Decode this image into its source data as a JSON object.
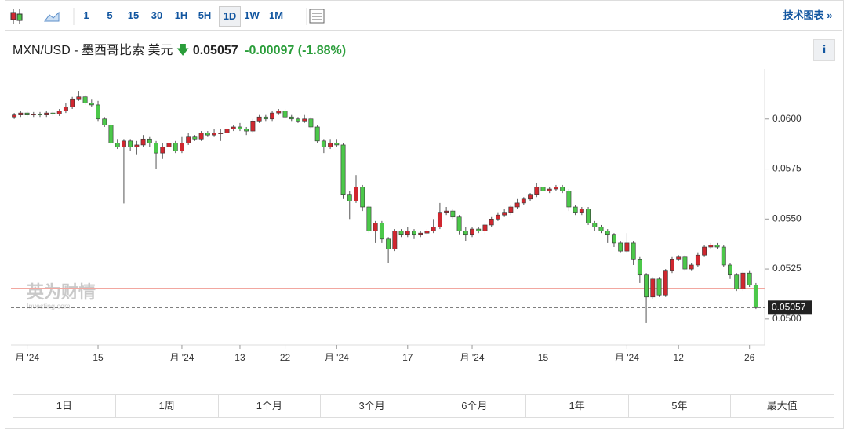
{
  "toolbar": {
    "intervals": [
      "1",
      "5",
      "15",
      "30",
      "1H",
      "5H",
      "1D",
      "1W",
      "1M"
    ],
    "tech_chart": "技术图表 »"
  },
  "header": {
    "symbol": "MXN/USD - 墨西哥比索 美元",
    "price": "0.05057",
    "change": "-0.00097",
    "change_pct": "(-1.88%)",
    "info": "i"
  },
  "watermark": {
    "brand": "英为财情",
    "site": "Investing.com"
  },
  "ranges": [
    "1日",
    "1周",
    "1个月",
    "3个月",
    "6个月",
    "1年",
    "5年",
    "最大值"
  ],
  "chart_data": {
    "type": "candlestick",
    "up_color": "#d0272f",
    "down_color": "#4cc84a",
    "categories": [
      null,
      null,
      "月 '24",
      null,
      null,
      null,
      null,
      null,
      null,
      null,
      null,
      null,
      null,
      "15",
      null,
      null,
      null,
      null,
      null,
      null,
      null,
      null,
      null,
      null,
      null,
      null,
      "月 '24",
      null,
      null,
      null,
      null,
      null,
      null,
      null,
      null,
      "13",
      null,
      null,
      null,
      null,
      null,
      null,
      "22",
      null,
      null,
      null,
      null,
      null,
      null,
      null,
      "月 '24",
      null,
      null,
      null,
      null,
      null,
      null,
      null,
      null,
      null,
      null,
      "17",
      null,
      null,
      null,
      null,
      null,
      null,
      null,
      null,
      null,
      "月 '24",
      null,
      null,
      null,
      null,
      null,
      null,
      null,
      null,
      null,
      null,
      "15",
      null,
      null,
      null,
      null,
      null,
      null,
      null,
      null,
      null,
      null,
      null,
      null,
      "月 '24",
      null,
      null,
      null,
      null,
      null,
      null,
      null,
      "12",
      null,
      null,
      null,
      null,
      null,
      null,
      null,
      null,
      null,
      null,
      "26",
      null
    ],
    "open": [
      0.0601,
      0.0602,
      0.0603,
      0.0602,
      0.06025,
      0.0602,
      0.0603,
      0.06025,
      0.0604,
      0.0606,
      0.061,
      0.0611,
      0.0608,
      0.0607,
      0.06,
      0.0597,
      0.0588,
      0.0586,
      0.0589,
      0.0586,
      0.0587,
      0.059,
      0.0588,
      0.0583,
      0.0586,
      0.0588,
      0.0584,
      0.0588,
      0.0591,
      0.059,
      0.0593,
      0.0592,
      0.0593,
      0.0593,
      0.0595,
      0.0596,
      0.0595,
      0.0594,
      0.0599,
      0.0601,
      0.06,
      0.0603,
      0.0604,
      0.0601,
      0.06,
      0.0599,
      0.06,
      0.0596,
      0.0589,
      0.0586,
      0.0588,
      0.0587,
      0.0562,
      0.0559,
      0.0566,
      0.0556,
      0.0544,
      0.0548,
      0.054,
      0.0535,
      0.0544,
      0.0542,
      0.0544,
      0.0542,
      0.0543,
      0.0544,
      0.0546,
      0.0553,
      0.0554,
      0.0551,
      0.0544,
      0.0542,
      0.0545,
      0.0544,
      0.0547,
      0.055,
      0.0552,
      0.0553,
      0.0556,
      0.0558,
      0.056,
      0.0562,
      0.0566,
      0.0564,
      0.0565,
      0.0566,
      0.0564,
      0.0556,
      0.0553,
      0.0555,
      0.0548,
      0.0546,
      0.0544,
      0.0542,
      0.0538,
      0.0534,
      0.0538,
      0.053,
      0.0522,
      0.0511,
      0.052,
      0.0512,
      0.0524,
      0.053,
      0.0531,
      0.0525,
      0.0527,
      0.0532,
      0.0536,
      0.0537,
      0.0536,
      0.0527,
      0.0522,
      0.0515,
      0.0523,
      0.0517
    ],
    "high": [
      0.0603,
      0.0604,
      0.0604,
      0.06035,
      0.06035,
      0.0604,
      0.0604,
      0.0605,
      0.0608,
      0.0611,
      0.0614,
      0.0612,
      0.061,
      0.0609,
      0.0601,
      0.0598,
      0.059,
      0.059,
      0.059,
      0.0589,
      0.0592,
      0.0591,
      0.0589,
      0.0588,
      0.059,
      0.0589,
      0.0591,
      0.0593,
      0.0592,
      0.0594,
      0.0594,
      0.0595,
      0.0595,
      0.0597,
      0.0597,
      0.0598,
      0.0596,
      0.06,
      0.0602,
      0.0602,
      0.0604,
      0.0605,
      0.0605,
      0.0602,
      0.0601,
      0.0602,
      0.0601,
      0.0597,
      0.059,
      0.059,
      0.059,
      0.0588,
      0.0564,
      0.0572,
      0.0567,
      0.0557,
      0.0549,
      0.0549,
      0.0541,
      0.0545,
      0.0545,
      0.0546,
      0.0545,
      0.0544,
      0.0545,
      0.055,
      0.0558,
      0.0556,
      0.0555,
      0.0552,
      0.0546,
      0.0546,
      0.0546,
      0.0548,
      0.0551,
      0.0553,
      0.0555,
      0.0557,
      0.056,
      0.0561,
      0.0563,
      0.0568,
      0.0567,
      0.0566,
      0.0567,
      0.0567,
      0.0565,
      0.0557,
      0.0556,
      0.0556,
      0.0549,
      0.0547,
      0.0545,
      0.0543,
      0.0539,
      0.0543,
      0.0539,
      0.0531,
      0.0523,
      0.0521,
      0.0521,
      0.0525,
      0.0531,
      0.0532,
      0.0532,
      0.0528,
      0.0533,
      0.0537,
      0.0538,
      0.0538,
      0.0537,
      0.0528,
      0.0523,
      0.0524,
      0.0524,
      0.0518
    ],
    "low": [
      0.06,
      0.0601,
      0.0601,
      0.0601,
      0.0601,
      0.0601,
      0.06015,
      0.06015,
      0.0603,
      0.0605,
      0.0609,
      0.0607,
      0.0606,
      0.0599,
      0.0596,
      0.0587,
      0.0585,
      0.05578,
      0.0584,
      0.0582,
      0.0586,
      0.0586,
      0.0575,
      0.058,
      0.0585,
      0.0583,
      0.0583,
      0.0587,
      0.0589,
      0.0589,
      0.0591,
      0.0591,
      0.0589,
      0.0592,
      0.0594,
      0.0594,
      0.0592,
      0.0593,
      0.0598,
      0.0599,
      0.0599,
      0.0602,
      0.06,
      0.0599,
      0.0598,
      0.0598,
      0.0595,
      0.0588,
      0.0583,
      0.0585,
      0.0586,
      0.056,
      0.055,
      0.0558,
      0.0554,
      0.0543,
      0.0538,
      0.0538,
      0.0528,
      0.0534,
      0.0541,
      0.0541,
      0.054,
      0.0541,
      0.0542,
      0.0543,
      0.0545,
      0.0552,
      0.055,
      0.0542,
      0.0539,
      0.0541,
      0.0543,
      0.0542,
      0.0546,
      0.0549,
      0.0551,
      0.0552,
      0.0555,
      0.0557,
      0.0559,
      0.0561,
      0.0563,
      0.0563,
      0.0564,
      0.0563,
      0.0554,
      0.0552,
      0.0552,
      0.0547,
      0.0544,
      0.0543,
      0.0538,
      0.0536,
      0.0533,
      0.0533,
      0.0527,
      0.0518,
      0.0498,
      0.051,
      0.0511,
      0.0511,
      0.0523,
      0.0529,
      0.0524,
      0.0524,
      0.0526,
      0.0531,
      0.0535,
      0.0535,
      0.0526,
      0.052,
      0.0514,
      0.0514,
      0.0516,
      0.0505
    ],
    "close": [
      0.0602,
      0.0603,
      0.0602,
      0.06025,
      0.0602,
      0.0603,
      0.06025,
      0.0604,
      0.0606,
      0.061,
      0.0611,
      0.0608,
      0.0607,
      0.06,
      0.0597,
      0.0588,
      0.0586,
      0.0589,
      0.0586,
      0.0587,
      0.059,
      0.0588,
      0.0583,
      0.0586,
      0.0588,
      0.0584,
      0.0588,
      0.0591,
      0.059,
      0.0593,
      0.0592,
      0.0593,
      0.0593,
      0.0595,
      0.0596,
      0.0595,
      0.0594,
      0.0599,
      0.0601,
      0.06,
      0.0603,
      0.0604,
      0.0601,
      0.06,
      0.0599,
      0.06,
      0.0596,
      0.0589,
      0.0586,
      0.0588,
      0.0587,
      0.0562,
      0.0559,
      0.0566,
      0.0556,
      0.0544,
      0.0548,
      0.054,
      0.0535,
      0.0544,
      0.0542,
      0.0544,
      0.0542,
      0.0543,
      0.0544,
      0.0546,
      0.0553,
      0.0554,
      0.0551,
      0.0544,
      0.0542,
      0.0545,
      0.0544,
      0.0547,
      0.055,
      0.0552,
      0.0553,
      0.0556,
      0.0558,
      0.056,
      0.0562,
      0.0566,
      0.0564,
      0.0565,
      0.0566,
      0.0564,
      0.0556,
      0.0553,
      0.0555,
      0.0548,
      0.0546,
      0.0544,
      0.0542,
      0.0538,
      0.0534,
      0.0538,
      0.053,
      0.0522,
      0.0511,
      0.052,
      0.0512,
      0.0524,
      0.053,
      0.0531,
      0.0525,
      0.0527,
      0.0532,
      0.0536,
      0.0537,
      0.0536,
      0.0527,
      0.0522,
      0.0515,
      0.0523,
      0.0517,
      0.05057
    ],
    "last_price": {
      "value": 0.05057,
      "label": "0.05057"
    },
    "prev_close": 0.05154,
    "ylim": [
      0.0487,
      0.0625
    ],
    "yticks": [
      {
        "value": 0.05,
        "label": "0.0500"
      },
      {
        "value": 0.0525,
        "label": "0.0525"
      },
      {
        "value": 0.055,
        "label": "0.0550"
      },
      {
        "value": 0.0575,
        "label": "0.0575"
      },
      {
        "value": 0.06,
        "label": "0.0600"
      }
    ]
  }
}
